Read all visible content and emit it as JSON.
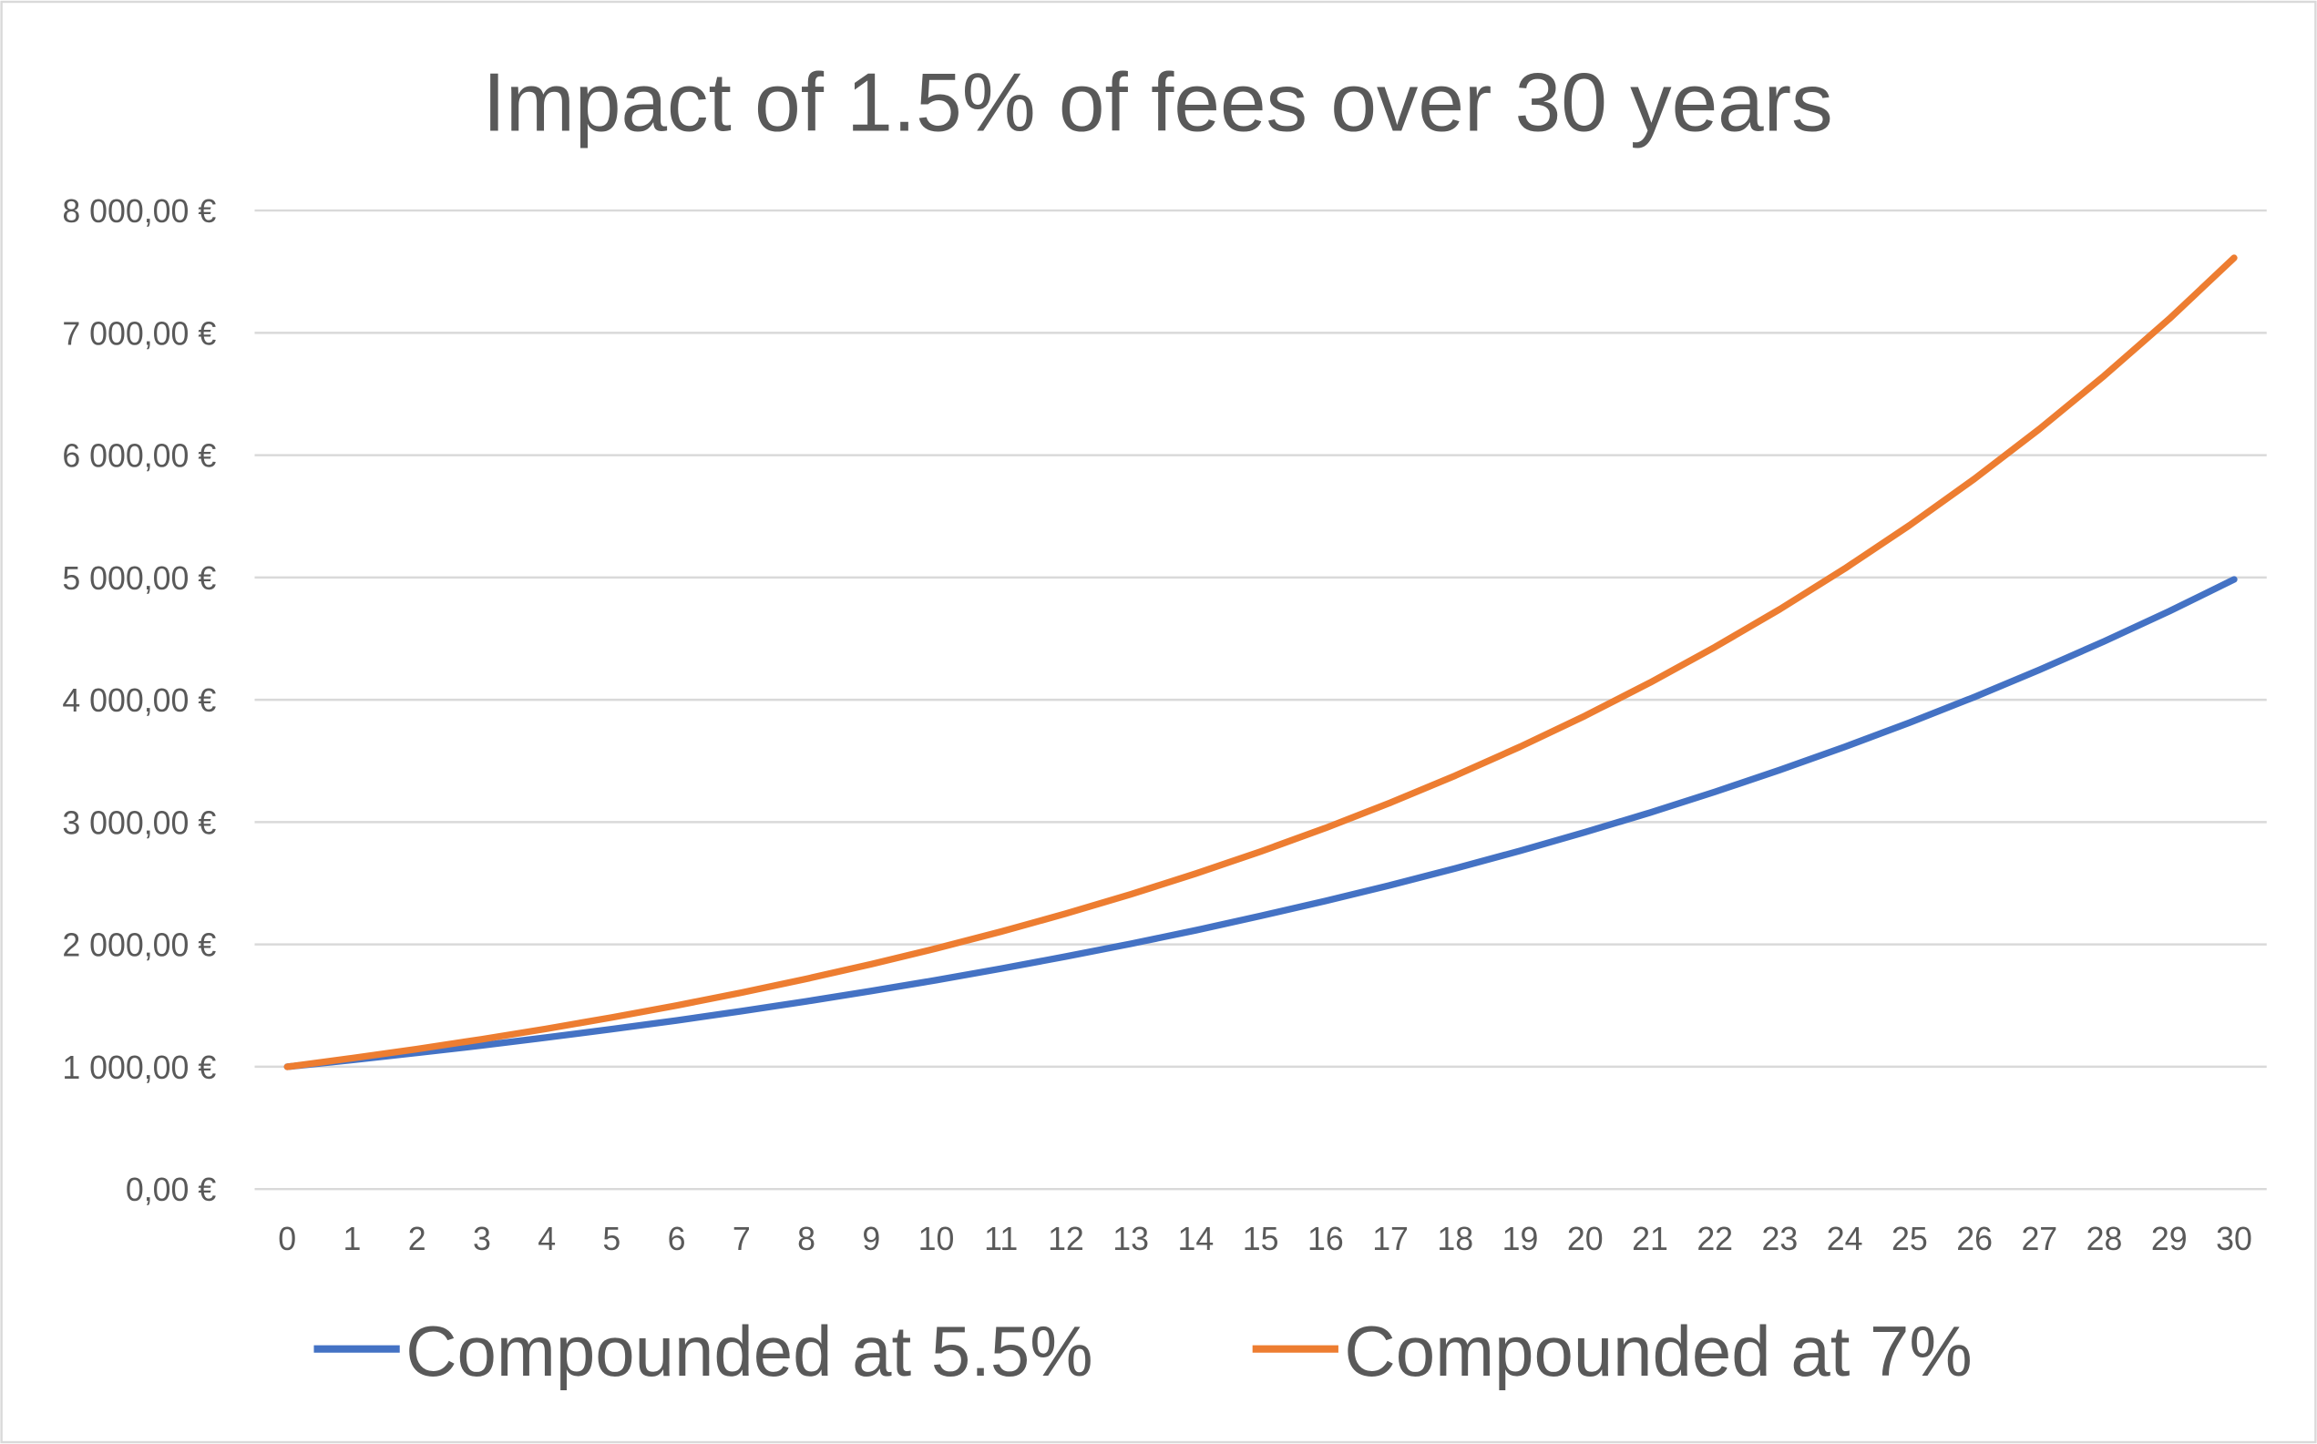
{
  "chart_data": {
    "type": "line",
    "title": "Impact of 1.5% of fees over 30 years",
    "xlabel": "",
    "ylabel": "",
    "x": [
      0,
      1,
      2,
      3,
      4,
      5,
      6,
      7,
      8,
      9,
      10,
      11,
      12,
      13,
      14,
      15,
      16,
      17,
      18,
      19,
      20,
      21,
      22,
      23,
      24,
      25,
      26,
      27,
      28,
      29,
      30
    ],
    "ylim": [
      0,
      8000
    ],
    "yticks": [
      0,
      1000,
      2000,
      3000,
      4000,
      5000,
      6000,
      7000,
      8000
    ],
    "ytick_labels": [
      "0,00 €",
      "1 000,00 €",
      "2 000,00 €",
      "3 000,00 €",
      "4 000,00 €",
      "5 000,00 €",
      "6 000,00 €",
      "7 000,00 €",
      "8 000,00 €"
    ],
    "grid": "horizontal",
    "legend_position": "bottom",
    "series": [
      {
        "name": "Compounded at 5.5%",
        "color": "#4472C4",
        "values": [
          1000,
          1055,
          1113.03,
          1174.24,
          1238.82,
          1306.96,
          1378.84,
          1454.68,
          1534.69,
          1619.09,
          1708.14,
          1802.09,
          1901.21,
          2005.77,
          2116.09,
          2232.48,
          2355.26,
          2484.8,
          2621.47,
          2765.65,
          2917.76,
          3078.23,
          3247.54,
          3426.15,
          3614.59,
          3813.39,
          4023.13,
          4244.4,
          4477.84,
          4724.12,
          4983.95
        ]
      },
      {
        "name": "Compounded at 7%",
        "color": "#ED7D31",
        "values": [
          1000,
          1070,
          1144.9,
          1225.04,
          1310.8,
          1402.55,
          1500.73,
          1605.78,
          1718.19,
          1838.46,
          1967.15,
          2104.85,
          2252.19,
          2409.85,
          2578.53,
          2759.03,
          2952.16,
          3158.82,
          3379.93,
          3616.53,
          3869.68,
          4140.56,
          4430.4,
          4740.53,
          5072.37,
          5427.43,
          5807.35,
          6213.87,
          6648.84,
          7114.26,
          7612.26
        ]
      }
    ]
  }
}
